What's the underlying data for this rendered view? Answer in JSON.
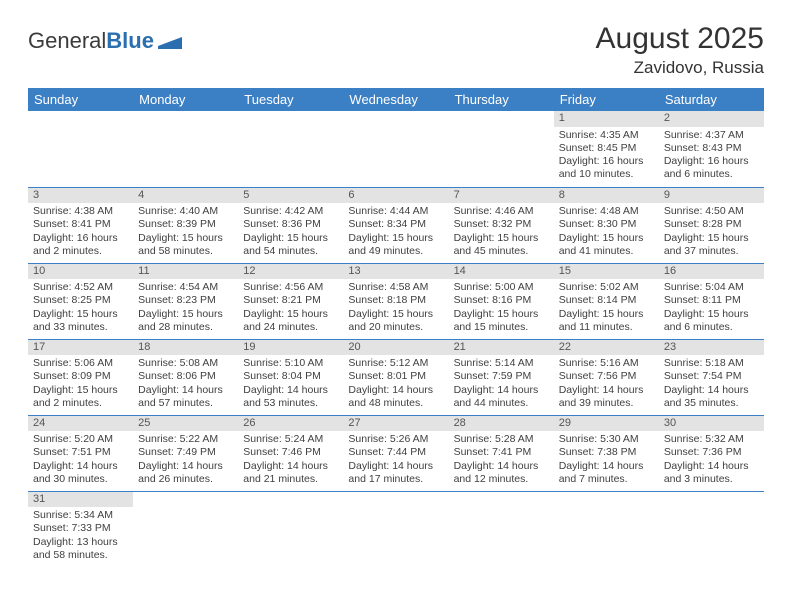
{
  "logo": {
    "text1": "General",
    "text2": "Blue"
  },
  "title": "August 2025",
  "location": "Zavidovo, Russia",
  "colors": {
    "header_bg": "#3b7fc4",
    "header_text": "#ffffff",
    "daynum_bg": "#e3e3e3",
    "row_border": "#3b7fc4",
    "body_text": "#404040"
  },
  "weekdays": [
    "Sunday",
    "Monday",
    "Tuesday",
    "Wednesday",
    "Thursday",
    "Friday",
    "Saturday"
  ],
  "weeks": [
    [
      null,
      null,
      null,
      null,
      null,
      {
        "n": "1",
        "sr": "Sunrise: 4:35 AM",
        "ss": "Sunset: 8:45 PM",
        "dl1": "Daylight: 16 hours",
        "dl2": "and 10 minutes."
      },
      {
        "n": "2",
        "sr": "Sunrise: 4:37 AM",
        "ss": "Sunset: 8:43 PM",
        "dl1": "Daylight: 16 hours",
        "dl2": "and 6 minutes."
      }
    ],
    [
      {
        "n": "3",
        "sr": "Sunrise: 4:38 AM",
        "ss": "Sunset: 8:41 PM",
        "dl1": "Daylight: 16 hours",
        "dl2": "and 2 minutes."
      },
      {
        "n": "4",
        "sr": "Sunrise: 4:40 AM",
        "ss": "Sunset: 8:39 PM",
        "dl1": "Daylight: 15 hours",
        "dl2": "and 58 minutes."
      },
      {
        "n": "5",
        "sr": "Sunrise: 4:42 AM",
        "ss": "Sunset: 8:36 PM",
        "dl1": "Daylight: 15 hours",
        "dl2": "and 54 minutes."
      },
      {
        "n": "6",
        "sr": "Sunrise: 4:44 AM",
        "ss": "Sunset: 8:34 PM",
        "dl1": "Daylight: 15 hours",
        "dl2": "and 49 minutes."
      },
      {
        "n": "7",
        "sr": "Sunrise: 4:46 AM",
        "ss": "Sunset: 8:32 PM",
        "dl1": "Daylight: 15 hours",
        "dl2": "and 45 minutes."
      },
      {
        "n": "8",
        "sr": "Sunrise: 4:48 AM",
        "ss": "Sunset: 8:30 PM",
        "dl1": "Daylight: 15 hours",
        "dl2": "and 41 minutes."
      },
      {
        "n": "9",
        "sr": "Sunrise: 4:50 AM",
        "ss": "Sunset: 8:28 PM",
        "dl1": "Daylight: 15 hours",
        "dl2": "and 37 minutes."
      }
    ],
    [
      {
        "n": "10",
        "sr": "Sunrise: 4:52 AM",
        "ss": "Sunset: 8:25 PM",
        "dl1": "Daylight: 15 hours",
        "dl2": "and 33 minutes."
      },
      {
        "n": "11",
        "sr": "Sunrise: 4:54 AM",
        "ss": "Sunset: 8:23 PM",
        "dl1": "Daylight: 15 hours",
        "dl2": "and 28 minutes."
      },
      {
        "n": "12",
        "sr": "Sunrise: 4:56 AM",
        "ss": "Sunset: 8:21 PM",
        "dl1": "Daylight: 15 hours",
        "dl2": "and 24 minutes."
      },
      {
        "n": "13",
        "sr": "Sunrise: 4:58 AM",
        "ss": "Sunset: 8:18 PM",
        "dl1": "Daylight: 15 hours",
        "dl2": "and 20 minutes."
      },
      {
        "n": "14",
        "sr": "Sunrise: 5:00 AM",
        "ss": "Sunset: 8:16 PM",
        "dl1": "Daylight: 15 hours",
        "dl2": "and 15 minutes."
      },
      {
        "n": "15",
        "sr": "Sunrise: 5:02 AM",
        "ss": "Sunset: 8:14 PM",
        "dl1": "Daylight: 15 hours",
        "dl2": "and 11 minutes."
      },
      {
        "n": "16",
        "sr": "Sunrise: 5:04 AM",
        "ss": "Sunset: 8:11 PM",
        "dl1": "Daylight: 15 hours",
        "dl2": "and 6 minutes."
      }
    ],
    [
      {
        "n": "17",
        "sr": "Sunrise: 5:06 AM",
        "ss": "Sunset: 8:09 PM",
        "dl1": "Daylight: 15 hours",
        "dl2": "and 2 minutes."
      },
      {
        "n": "18",
        "sr": "Sunrise: 5:08 AM",
        "ss": "Sunset: 8:06 PM",
        "dl1": "Daylight: 14 hours",
        "dl2": "and 57 minutes."
      },
      {
        "n": "19",
        "sr": "Sunrise: 5:10 AM",
        "ss": "Sunset: 8:04 PM",
        "dl1": "Daylight: 14 hours",
        "dl2": "and 53 minutes."
      },
      {
        "n": "20",
        "sr": "Sunrise: 5:12 AM",
        "ss": "Sunset: 8:01 PM",
        "dl1": "Daylight: 14 hours",
        "dl2": "and 48 minutes."
      },
      {
        "n": "21",
        "sr": "Sunrise: 5:14 AM",
        "ss": "Sunset: 7:59 PM",
        "dl1": "Daylight: 14 hours",
        "dl2": "and 44 minutes."
      },
      {
        "n": "22",
        "sr": "Sunrise: 5:16 AM",
        "ss": "Sunset: 7:56 PM",
        "dl1": "Daylight: 14 hours",
        "dl2": "and 39 minutes."
      },
      {
        "n": "23",
        "sr": "Sunrise: 5:18 AM",
        "ss": "Sunset: 7:54 PM",
        "dl1": "Daylight: 14 hours",
        "dl2": "and 35 minutes."
      }
    ],
    [
      {
        "n": "24",
        "sr": "Sunrise: 5:20 AM",
        "ss": "Sunset: 7:51 PM",
        "dl1": "Daylight: 14 hours",
        "dl2": "and 30 minutes."
      },
      {
        "n": "25",
        "sr": "Sunrise: 5:22 AM",
        "ss": "Sunset: 7:49 PM",
        "dl1": "Daylight: 14 hours",
        "dl2": "and 26 minutes."
      },
      {
        "n": "26",
        "sr": "Sunrise: 5:24 AM",
        "ss": "Sunset: 7:46 PM",
        "dl1": "Daylight: 14 hours",
        "dl2": "and 21 minutes."
      },
      {
        "n": "27",
        "sr": "Sunrise: 5:26 AM",
        "ss": "Sunset: 7:44 PM",
        "dl1": "Daylight: 14 hours",
        "dl2": "and 17 minutes."
      },
      {
        "n": "28",
        "sr": "Sunrise: 5:28 AM",
        "ss": "Sunset: 7:41 PM",
        "dl1": "Daylight: 14 hours",
        "dl2": "and 12 minutes."
      },
      {
        "n": "29",
        "sr": "Sunrise: 5:30 AM",
        "ss": "Sunset: 7:38 PM",
        "dl1": "Daylight: 14 hours",
        "dl2": "and 7 minutes."
      },
      {
        "n": "30",
        "sr": "Sunrise: 5:32 AM",
        "ss": "Sunset: 7:36 PM",
        "dl1": "Daylight: 14 hours",
        "dl2": "and 3 minutes."
      }
    ],
    [
      {
        "n": "31",
        "sr": "Sunrise: 5:34 AM",
        "ss": "Sunset: 7:33 PM",
        "dl1": "Daylight: 13 hours",
        "dl2": "and 58 minutes."
      },
      null,
      null,
      null,
      null,
      null,
      null
    ]
  ]
}
